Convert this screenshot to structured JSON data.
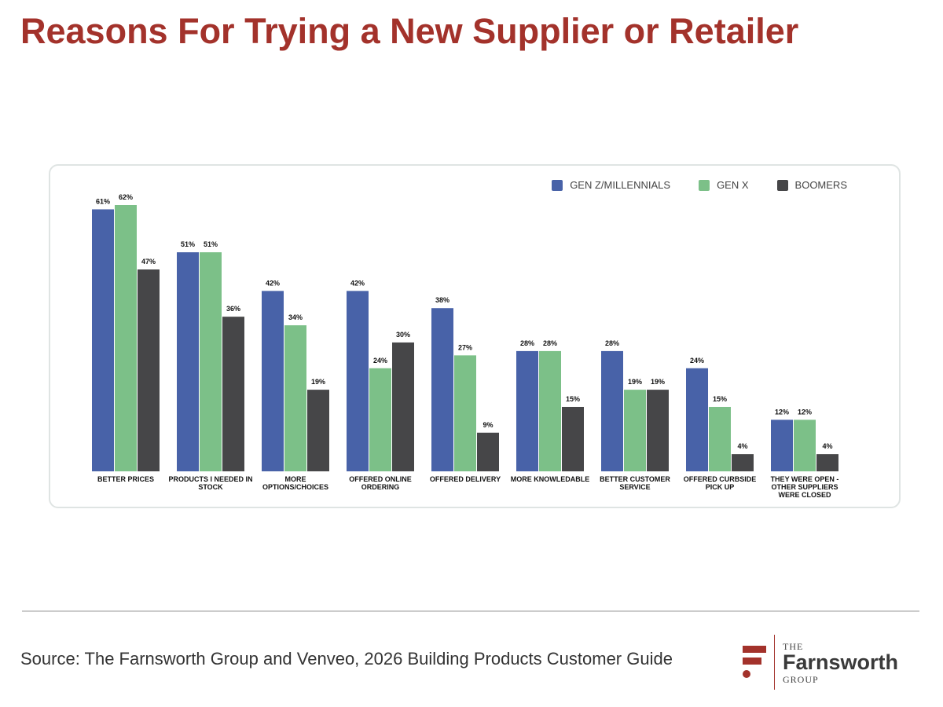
{
  "title": "Reasons For Trying a New Supplier or Retailer",
  "chart_data": {
    "type": "bar",
    "categories": [
      "BETTER PRICES",
      "PRODUCTS I NEEDED IN STOCK",
      "MORE OPTIONS/CHOICES",
      "OFFERED ONLINE ORDERING",
      "OFFERED DELIVERY",
      "MORE KNOWLEDABLE",
      "BETTER CUSTOMER SERVICE",
      "OFFERED CURBSIDE PICK UP",
      "THEY WERE OPEN - OTHER SUPPLIERS WERE CLOSED"
    ],
    "series": [
      {
        "name": "GEN Z/MILLENNIALS",
        "color": "#4862a8",
        "values": [
          61,
          51,
          42,
          42,
          38,
          28,
          28,
          24,
          12
        ],
        "value_labels": [
          "61%",
          "51%",
          "42%",
          "42%",
          "38%",
          "28%",
          "28%",
          "24%",
          "12%"
        ]
      },
      {
        "name": "GEN X",
        "color": "#7cc088",
        "values": [
          62,
          51,
          34,
          24,
          27,
          28,
          19,
          15,
          12
        ],
        "value_labels": [
          "62%",
          "51%",
          "34%",
          "24%",
          "27%",
          "28%",
          "19%",
          "15%",
          "12%"
        ]
      },
      {
        "name": "BOOMERS",
        "color": "#464648",
        "values": [
          47,
          36,
          19,
          30,
          9,
          15,
          19,
          4,
          4
        ],
        "value_labels": [
          "47%",
          "36%",
          "19%",
          "30%",
          "9%",
          "15%",
          "19%",
          "4%",
          "4%"
        ]
      }
    ],
    "legend": "top-right"
  },
  "source": "Source: The Farnsworth Group and Venveo, 2026 Building Products Customer Guide",
  "logo": {
    "the": "THE",
    "name": "Farnsworth",
    "group": "GROUP"
  }
}
